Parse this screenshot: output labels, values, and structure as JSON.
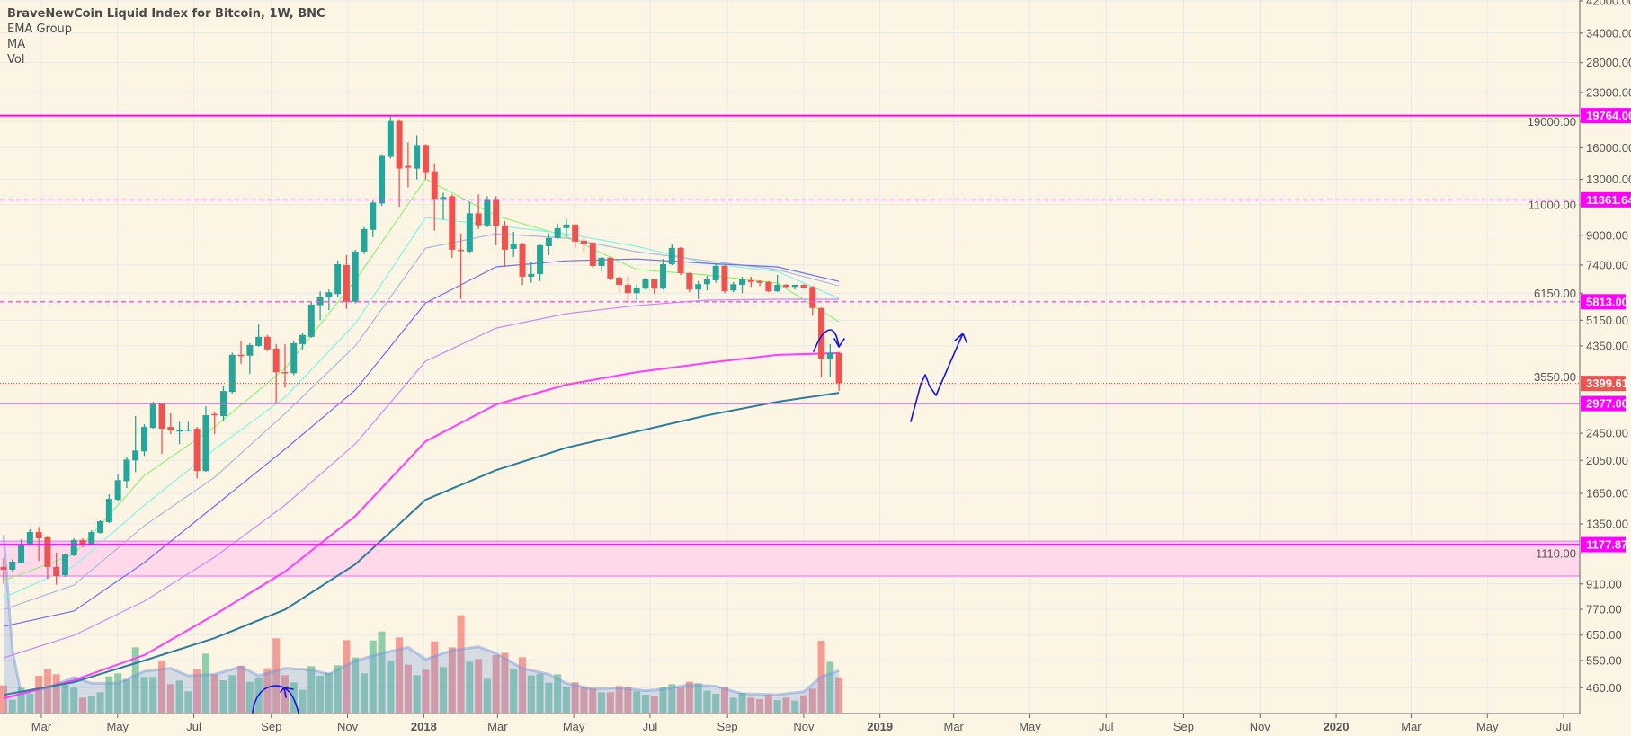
{
  "legend": {
    "title": "BraveNewCoin Liquid Index for Bitcoin, 1W, BNC",
    "items": [
      "EMA Group",
      "MA",
      "Vol"
    ]
  },
  "chart_data": {
    "type": "candlestick",
    "scale": "log",
    "grid": true,
    "colors": {
      "up": "#26a69a",
      "down": "#ef5350",
      "background": "#fdf5e4"
    },
    "price_axis": {
      "ticks": [
        "42000.00",
        "34000.00",
        "28000.00",
        "23000.00",
        "19000.00",
        "16000.00",
        "13000.00",
        "11000.00",
        "9000.00",
        "7400.00",
        "6150.00",
        "5150.00",
        "4350.00",
        "3550.00",
        "2450.00",
        "2050.00",
        "1650.00",
        "1350.00",
        "1110.00",
        "910.00",
        "770.00",
        "650.00",
        "550.00",
        "460.00"
      ]
    },
    "time_axis": {
      "ticks": [
        {
          "label": "Mar",
          "bold": false
        },
        {
          "label": "May",
          "bold": false
        },
        {
          "label": "Jul",
          "bold": false
        },
        {
          "label": "Sep",
          "bold": false
        },
        {
          "label": "Nov",
          "bold": false
        },
        {
          "label": "2018",
          "bold": true
        },
        {
          "label": "Mar",
          "bold": false
        },
        {
          "label": "May",
          "bold": false
        },
        {
          "label": "Jul",
          "bold": false
        },
        {
          "label": "Sep",
          "bold": false
        },
        {
          "label": "Nov",
          "bold": false
        },
        {
          "label": "2019",
          "bold": true
        },
        {
          "label": "Mar",
          "bold": false
        },
        {
          "label": "May",
          "bold": false
        },
        {
          "label": "Jul",
          "bold": false
        },
        {
          "label": "Sep",
          "bold": false
        },
        {
          "label": "Nov",
          "bold": false
        },
        {
          "label": "2020",
          "bold": true
        },
        {
          "label": "Mar",
          "bold": false
        },
        {
          "label": "May",
          "bold": false
        },
        {
          "label": "Jul",
          "bold": false
        }
      ]
    },
    "candles_ohlc": [
      [
        1017,
        1078,
        913,
        999
      ],
      [
        999,
        1070,
        982,
        1053
      ],
      [
        1047,
        1221,
        1040,
        1178
      ],
      [
        1178,
        1303,
        1170,
        1280
      ],
      [
        1280,
        1323,
        1059,
        1228
      ],
      [
        1236,
        1243,
        941,
        1017
      ],
      [
        1017,
        1117,
        905,
        958
      ],
      [
        964,
        1111,
        952,
        1104
      ],
      [
        1098,
        1228,
        1092,
        1214
      ],
      [
        1214,
        1228,
        1157,
        1178
      ],
      [
        1178,
        1295,
        1170,
        1280
      ],
      [
        1273,
        1382,
        1266,
        1374
      ],
      [
        1366,
        1640,
        1358,
        1592
      ],
      [
        1583,
        1876,
        1575,
        1800
      ],
      [
        1789,
        2099,
        1710,
        2062
      ],
      [
        2050,
        2742,
        1898,
        2187
      ],
      [
        2174,
        2599,
        2110,
        2553
      ],
      [
        2538,
        3012,
        2523,
        2977
      ],
      [
        2977,
        2994,
        2136,
        2523
      ],
      [
        2553,
        2790,
        2436,
        2494
      ],
      [
        2490,
        2640,
        2280,
        2500
      ],
      [
        2505,
        2640,
        2480,
        2510
      ],
      [
        2523,
        2553,
        1823,
        1911
      ],
      [
        1911,
        2925,
        1900,
        2758
      ],
      [
        2780,
        2810,
        2436,
        2760
      ],
      [
        2742,
        3330,
        2660,
        3233
      ],
      [
        3214,
        4160,
        3180,
        4102
      ],
      [
        4102,
        4507,
        3865,
        4080
      ],
      [
        4078,
        4427,
        3613,
        4376
      ],
      [
        4350,
        5002,
        4325,
        4615
      ],
      [
        4615,
        4673,
        4200,
        4250
      ],
      [
        4275,
        4402,
        2977,
        3657
      ],
      [
        3660,
        4402,
        3306,
        3635
      ],
      [
        3635,
        4480,
        3590,
        4427
      ],
      [
        4402,
        4730,
        4224,
        4673
      ],
      [
        4615,
        5780,
        4590,
        5710
      ],
      [
        5686,
        6224,
        5150,
        5987
      ],
      [
        5987,
        6300,
        5500,
        6186
      ],
      [
        6114,
        7624,
        5987,
        7444
      ],
      [
        7400,
        7893,
        5545,
        5813
      ],
      [
        5813,
        8184,
        5750,
        8087
      ],
      [
        8087,
        9490,
        7950,
        9378
      ],
      [
        9323,
        11300,
        8895,
        11160
      ],
      [
        11094,
        15330,
        10900,
        15160
      ],
      [
        15070,
        19764,
        14900,
        19073
      ],
      [
        19073,
        19300,
        10838,
        13949
      ],
      [
        14200,
        16577,
        12324,
        14032
      ],
      [
        13949,
        17375,
        13000,
        16288
      ],
      [
        16288,
        16384,
        13000,
        13624
      ],
      [
        13705,
        14456,
        9274,
        11428
      ],
      [
        11428,
        11903,
        9979,
        11564
      ],
      [
        11630,
        11770,
        7763,
        8184
      ],
      [
        8184,
        9107,
        5918,
        8136
      ],
      [
        8087,
        11226,
        8039,
        10397
      ],
      [
        10397,
        11770,
        9378,
        9606
      ],
      [
        9606,
        11630,
        9493,
        11428
      ],
      [
        11428,
        11630,
        8426,
        9549
      ],
      [
        9606,
        9895,
        7312,
        8184
      ],
      [
        8231,
        9214,
        7808,
        8519
      ],
      [
        8519,
        8570,
        6497,
        6854
      ],
      [
        6854,
        7578,
        6582,
        6975
      ],
      [
        6975,
        8500,
        6660,
        8426
      ],
      [
        8376,
        9107,
        7893,
        8841
      ],
      [
        8841,
        9715,
        8789,
        9434
      ],
      [
        9434,
        10011,
        8895,
        9658
      ],
      [
        9658,
        9715,
        8282,
        8631
      ],
      [
        8682,
        8948,
        8039,
        8519
      ],
      [
        8570,
        8600,
        7269,
        7356
      ],
      [
        7356,
        7808,
        7099,
        7763
      ],
      [
        7763,
        7800,
        6693,
        6773
      ],
      [
        6813,
        6893,
        6186,
        6497
      ],
      [
        6497,
        6854,
        5779,
        6150
      ],
      [
        6150,
        6524,
        5779,
        6372
      ],
      [
        6335,
        6813,
        6298,
        6733
      ],
      [
        6733,
        6760,
        6114,
        6335
      ],
      [
        6335,
        7708,
        6298,
        7444
      ],
      [
        7444,
        8519,
        7400,
        8282
      ],
      [
        8282,
        8330,
        6934,
        7016
      ],
      [
        7016,
        7050,
        6186,
        6298
      ],
      [
        6298,
        6660,
        5918,
        6524
      ],
      [
        6524,
        6893,
        6261,
        6733
      ],
      [
        6693,
        7444,
        6582,
        7356
      ],
      [
        7356,
        7400,
        6150,
        6224
      ],
      [
        6261,
        6621,
        6186,
        6524
      ],
      [
        6497,
        6853,
        6150,
        6733
      ],
      [
        6693,
        6853,
        6410,
        6621
      ],
      [
        6660,
        6693,
        6448,
        6582
      ],
      [
        6621,
        6660,
        6186,
        6224
      ],
      [
        6224,
        6934,
        6200,
        6497
      ],
      [
        6497,
        6524,
        6372,
        6410
      ],
      [
        6410,
        6500,
        6298,
        6497
      ],
      [
        6497,
        6524,
        6335,
        6372
      ],
      [
        6410,
        6448,
        5304,
        5577
      ],
      [
        5577,
        5600,
        3529,
        4002
      ],
      [
        4002,
        4402,
        3550,
        4155
      ],
      [
        4155,
        4180,
        3238,
        3399.61
      ]
    ],
    "volume_relative": [
      91,
      43,
      83,
      63,
      123,
      146,
      128,
      93,
      83,
      50,
      56,
      68,
      121,
      131,
      110,
      218,
      119,
      119,
      173,
      95,
      107,
      71,
      146,
      197,
      128,
      108,
      125,
      156,
      103,
      114,
      148,
      248,
      125,
      101,
      76,
      155,
      123,
      133,
      158,
      242,
      184,
      131,
      241,
      271,
      171,
      251,
      160,
      125,
      143,
      238,
      152,
      218,
      325,
      170,
      179,
      113,
      192,
      200,
      146,
      185,
      124,
      130,
      100,
      128,
      86,
      101,
      87,
      82,
      68,
      68,
      89,
      85,
      71,
      60,
      56,
      86,
      95,
      86,
      103,
      98,
      73,
      63,
      86,
      50,
      66,
      50,
      45,
      60,
      42,
      50,
      40,
      58,
      80,
      240,
      170,
      118
    ],
    "volume_ma": {
      "bars": [
        0,
        1,
        2,
        5,
        8,
        10,
        13,
        16,
        19,
        21,
        24,
        27,
        29,
        32,
        35,
        37,
        40,
        43,
        46,
        48,
        51,
        54,
        56,
        59,
        62,
        64,
        67,
        70,
        73,
        75,
        78,
        81,
        84,
        88,
        91,
        93,
        95
      ],
      "values": [
        593,
        208,
        63,
        83,
        118,
        98,
        98,
        138,
        148,
        123,
        128,
        153,
        123,
        148,
        143,
        128,
        173,
        198,
        218,
        178,
        208,
        220,
        198,
        148,
        128,
        98,
        78,
        83,
        73,
        78,
        93,
        88,
        63,
        60,
        70,
        120,
        140
      ]
    },
    "indicators": {
      "bars": [
        0,
        8,
        16,
        24,
        32,
        40,
        48,
        56,
        64,
        72,
        80,
        88,
        95
      ],
      "lines": [
        {
          "color": "#8ef27a",
          "values": [
            930,
            1105,
            1856,
            2554,
            3751,
            6690,
            13030,
            10230,
            8930,
            7180,
            6930,
            6570,
            5100
          ]
        },
        {
          "color": "#7ff5e8",
          "values": [
            831,
            1021,
            1527,
            2205,
            3103,
            5039,
            10110,
            9587,
            9090,
            8370,
            7480,
            7093,
            5943
          ]
        },
        {
          "color": "#aab8dc",
          "values": [
            769,
            903,
            1333,
            1834,
            2788,
            4350,
            8272,
            9090,
            8830,
            8080,
            7610,
            7180,
            6455
          ]
        },
        {
          "color": "#6e6ef0",
          "values": [
            688,
            761,
            1047,
            1518,
            2205,
            3254,
            5770,
            7310,
            7610,
            7700,
            7480,
            7310,
            6644
          ]
        },
        {
          "color": "#c98af5",
          "values": [
            560,
            649,
            812,
            1085,
            1527,
            2283,
            3934,
            4890,
            5378,
            5671,
            5875,
            5911,
            5911
          ]
        },
        {
          "color": "#ff3cff",
          "values": [
            429,
            483,
            570,
            743,
            987,
            1422,
            2323,
            2960,
            3370,
            3661,
            3887,
            4099,
            4148
          ]
        },
        {
          "color": "#2a7d9c",
          "values": [
            439,
            477,
            550,
            637,
            769,
            1035,
            1582,
            1922,
            2227,
            2478,
            2756,
            3012,
            3195
          ]
        }
      ]
    },
    "levels": [
      {
        "price": 19764.0,
        "label": "19764.00",
        "style": "solid",
        "color": "#ff00ff",
        "box": "#ff00ff"
      },
      {
        "price": 11361.64,
        "label": "11361.64",
        "style": "dashed",
        "color": "#ff44ff",
        "box": "#ff00ff"
      },
      {
        "price": 5813.0,
        "label": "5813.00",
        "style": "dashed",
        "color": "#ff44ff",
        "box": "#ff00ff"
      },
      {
        "price": 3399.61,
        "label": "3399.61",
        "style": "dotted",
        "color": "#ef5350",
        "box": "#ef5350"
      },
      {
        "price": 2977.0,
        "label": "2977.00",
        "style": "solid",
        "color": "#ff44ff",
        "box": "#ff00ff"
      },
      {
        "price": 1177.87,
        "label": "1177.87",
        "style": "solid",
        "color": "#ff00ff",
        "box": "#ff00ff"
      }
    ],
    "zone": {
      "top": 1205,
      "bottom": 958,
      "fill": "#ffd8ea",
      "edge": "#ff88ff"
    },
    "annotation_color": "#1414e6"
  }
}
